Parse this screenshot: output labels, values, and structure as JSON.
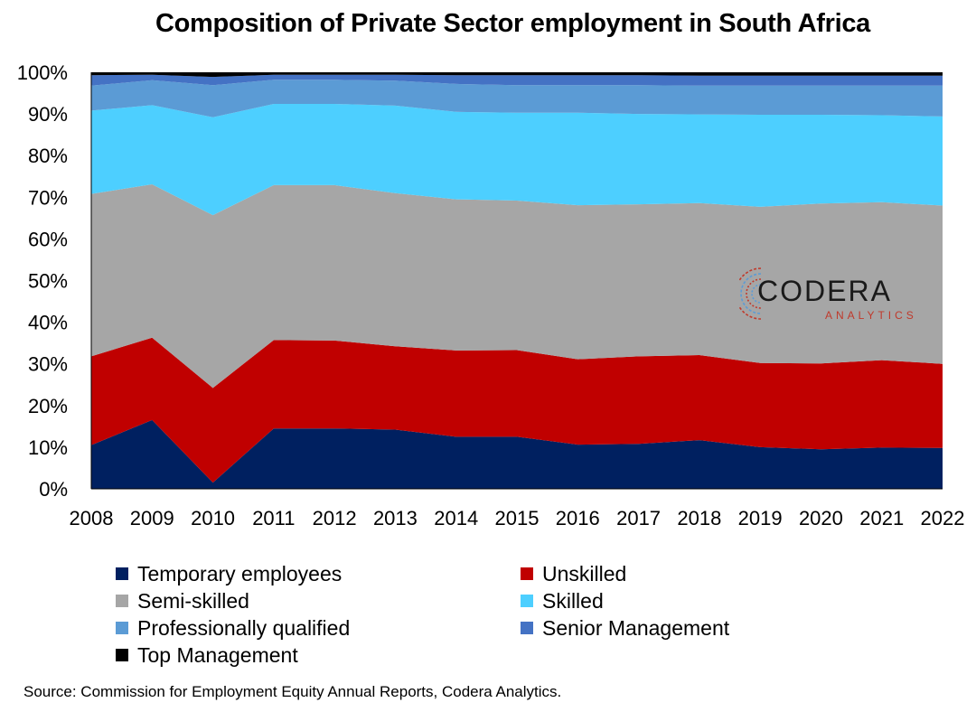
{
  "chart_data": {
    "type": "area",
    "title": "Composition of Private Sector employment in South Africa",
    "x": [
      "2008",
      "2009",
      "2010",
      "2011",
      "2012",
      "2013",
      "2014",
      "2015",
      "2016",
      "2017",
      "2018",
      "2019",
      "2020",
      "2021",
      "2022"
    ],
    "y_ticks": [
      "0%",
      "10%",
      "20%",
      "30%",
      "40%",
      "50%",
      "60%",
      "70%",
      "80%",
      "90%",
      "100%"
    ],
    "ylim": [
      0,
      100
    ],
    "stacked": true,
    "grid": false,
    "legend_position": "bottom",
    "series": [
      {
        "name": "Temporary employees",
        "color": "#002060",
        "values": [
          10.5,
          16.5,
          1.5,
          14.5,
          14.5,
          14.2,
          12.5,
          12.5,
          10.6,
          10.8,
          11.7,
          10.0,
          9.5,
          9.9,
          9.8
        ]
      },
      {
        "name": "Unskilled",
        "color": "#c00000",
        "values": [
          21.3,
          19.8,
          22.7,
          21.2,
          21.1,
          20.0,
          20.7,
          20.8,
          20.5,
          21.0,
          20.4,
          20.2,
          20.6,
          21.0,
          20.2
        ]
      },
      {
        "name": "Semi-skilled",
        "color": "#a6a6a6",
        "values": [
          39.0,
          36.8,
          41.5,
          37.2,
          37.3,
          36.8,
          36.3,
          35.9,
          37.0,
          36.5,
          36.5,
          37.5,
          38.4,
          37.9,
          38.0
        ]
      },
      {
        "name": "Skilled",
        "color": "#4dcfff",
        "values": [
          20.0,
          19.0,
          23.5,
          19.5,
          19.5,
          21.0,
          21.0,
          21.1,
          22.2,
          21.7,
          21.3,
          22.1,
          21.3,
          20.9,
          21.4
        ]
      },
      {
        "name": "Professionally qualified",
        "color": "#5b9bd5",
        "values": [
          6.0,
          6.0,
          7.7,
          5.8,
          5.8,
          6.0,
          6.7,
          6.6,
          6.6,
          6.9,
          6.9,
          7.0,
          7.0,
          7.1,
          7.4
        ]
      },
      {
        "name": "Senior Management",
        "color": "#4472c4",
        "values": [
          2.5,
          1.3,
          2.0,
          1.2,
          1.2,
          1.4,
          2.1,
          2.4,
          2.4,
          2.4,
          2.4,
          2.4,
          2.4,
          2.4,
          2.4
        ]
      },
      {
        "name": "Top Management",
        "color": "#000000",
        "values": [
          0.7,
          0.6,
          1.1,
          0.6,
          0.6,
          0.6,
          0.7,
          0.7,
          0.7,
          0.7,
          0.8,
          0.8,
          0.8,
          0.8,
          0.8
        ]
      }
    ]
  },
  "source": "Source: Commission for Employment Equity Annual Reports, Codera Analytics.",
  "logo": {
    "word": "CODERA",
    "sub": "ANALYTICS",
    "colors": {
      "word": "#1a1a1a",
      "sub": "#c0392b",
      "mark_a": "#c0392b",
      "mark_b": "#5b9bd5"
    }
  }
}
